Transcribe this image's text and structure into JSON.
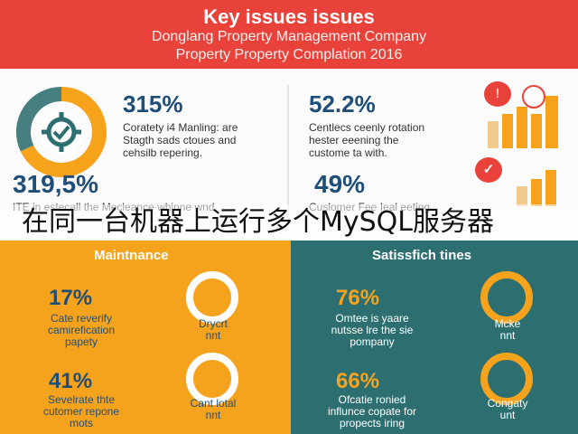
{
  "header": {
    "title": "Key issues issues",
    "line1": "Donglang Property Management Company",
    "line2": "Property Property Complation 2016"
  },
  "upper": {
    "left": {
      "stat1": "315%",
      "text1": [
        "Coratety i4 Manling: are",
        "Stagth sads ctoues and",
        "cehsilb repering."
      ],
      "stat2": "319,5%",
      "text2_partial": "ITE in estecall the Mecleance whinne wnd"
    },
    "right": {
      "stat1": "52.2%",
      "text1": [
        "Centlecs ceenly rotation",
        "hester eeening the",
        "custome ta with."
      ],
      "stat2": "49%",
      "text2_partial": "Cuslomer Fee Ieal eeting"
    }
  },
  "overlay_title": "在同一台机器上运行多个MySQL服务器",
  "maintenance": {
    "heading": "Maintnance",
    "stat1": "17%",
    "desc1": [
      "Cate reverify",
      "camirefication",
      "papety"
    ],
    "ring1_label": [
      "Drycrt",
      "nnt"
    ],
    "stat2": "41%",
    "desc2": [
      "Sevelrate thte",
      "cutomer repone",
      "mots"
    ],
    "ring2_label": [
      "Cant lotal",
      "nnt"
    ]
  },
  "satisfaction": {
    "heading": "Satissfich tines",
    "stat1": "76%",
    "desc1": [
      "Omtee is yaare",
      "nutsse lre the sie",
      "pompany"
    ],
    "ring1_label": [
      "Mcke",
      "nnt"
    ],
    "stat2": "66%",
    "desc2": [
      "Ofcatie ronied",
      "influnce copate for",
      "propects iring"
    ],
    "ring2_label": [
      "Congaty",
      "unt"
    ]
  },
  "colors": {
    "red": "#e8423b",
    "orange": "#f5a31c",
    "teal": "#2d6f70",
    "navy": "#1f4e79"
  },
  "icons": [
    "gear-icon",
    "chat-bubble-icon",
    "globe-icon",
    "bar-chart-icon",
    "checkmark-icon"
  ]
}
